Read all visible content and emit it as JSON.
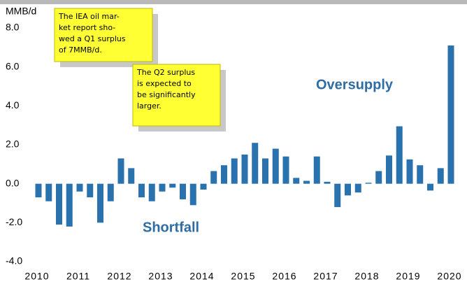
{
  "chart_data": {
    "type": "bar",
    "y_label": "MMB/d",
    "categories": [
      "2010",
      null,
      null,
      null,
      "2011",
      null,
      null,
      null,
      "2012",
      null,
      null,
      null,
      "2013",
      null,
      null,
      null,
      "2014",
      null,
      null,
      null,
      "2015",
      null,
      null,
      null,
      "2016",
      null,
      null,
      null,
      "2017",
      null,
      null,
      null,
      "2018",
      null,
      null,
      null,
      "2019",
      null,
      null,
      null,
      "2020"
    ],
    "values": [
      -0.7,
      -0.9,
      -2.1,
      -2.2,
      -0.4,
      -0.7,
      -2.0,
      -0.9,
      1.3,
      0.8,
      -0.7,
      -0.9,
      -0.4,
      -0.2,
      -0.8,
      -1.1,
      -0.3,
      0.65,
      0.95,
      1.3,
      1.5,
      2.1,
      1.3,
      1.8,
      1.4,
      0.3,
      0.15,
      1.4,
      0.1,
      -1.2,
      -0.6,
      -0.45,
      0.05,
      0.65,
      1.45,
      2.95,
      1.25,
      0.95,
      -0.35,
      0.8,
      7.1
    ],
    "color": "#2a72ad",
    "ylim": [
      -4,
      8
    ],
    "yticks": [
      {
        "value": -4,
        "label": "-4.0"
      },
      {
        "value": -2,
        "label": "-2.0"
      },
      {
        "value": 0,
        "label": "0.0"
      },
      {
        "value": 2,
        "label": "2.0"
      },
      {
        "value": 4,
        "label": "4.0"
      },
      {
        "value": 6,
        "label": "6.0"
      },
      {
        "value": 8,
        "label": "8.0"
      }
    ],
    "grid": false,
    "annotations": [
      {
        "lines": [
          "The IEA oil mar-",
          "ket report sho-",
          "wed a Q1 surplus",
          "of 7MMB/d."
        ]
      },
      {
        "lines": [
          "The Q2 surplus",
          "is expected to",
          "be significantly",
          "larger."
        ]
      }
    ],
    "region_labels": [
      "Oversupply",
      "Shortfall"
    ]
  }
}
